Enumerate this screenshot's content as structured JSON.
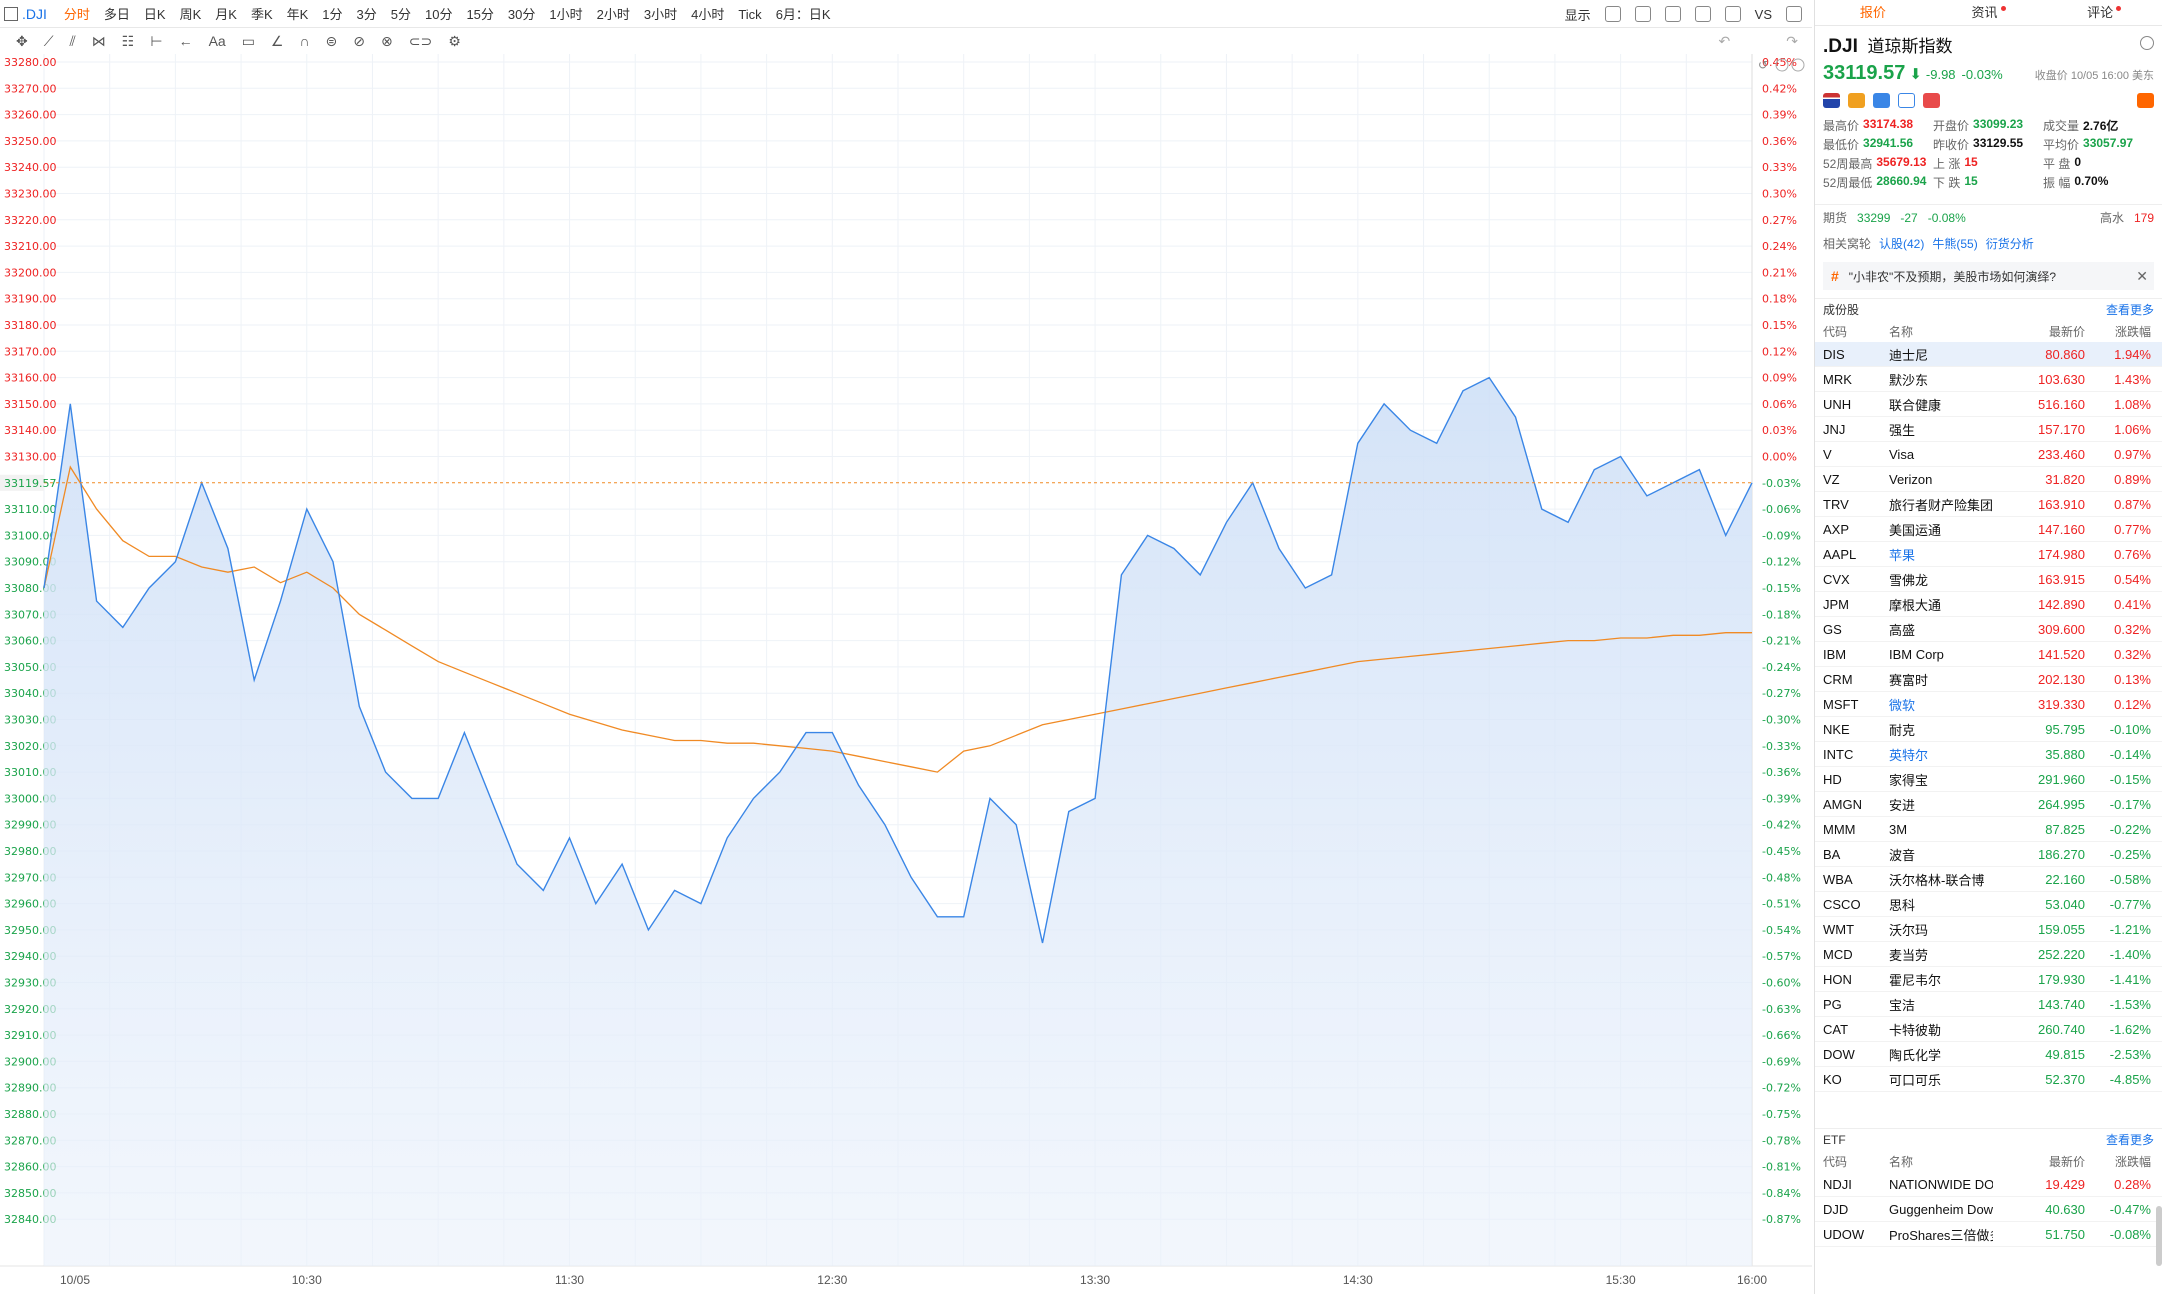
{
  "toolbar": {
    "symbol": ".DJI",
    "periods": [
      "分时",
      "多日",
      "日K",
      "周K",
      "月K",
      "季K",
      "年K",
      "1分",
      "3分",
      "5分",
      "10分",
      "15分",
      "30分",
      "1小时",
      "2小时",
      "3小时",
      "4小时",
      "Tick",
      "6月：日K"
    ],
    "active_period": "分时",
    "display_label": "显示",
    "vs_label": "VS"
  },
  "chart": {
    "last_price_label": "33119.57",
    "last_pct_label": "-0.03%",
    "y_left": [
      "33280.00",
      "33270.00",
      "33260.00",
      "33250.00",
      "33240.00",
      "33230.00",
      "33220.00",
      "33210.00",
      "33200.00",
      "33190.00",
      "33180.00",
      "33170.00",
      "33160.00",
      "33150.00",
      "33140.00",
      "33130.00",
      "33110.00",
      "33100.00",
      "33090.00",
      "33080.00",
      "33070.00",
      "33060.00",
      "33050.00",
      "33040.00",
      "33030.00",
      "33020.00",
      "33010.00",
      "33000.00",
      "32990.00",
      "32980.00",
      "32970.00",
      "32960.00",
      "32950.00",
      "32940.00",
      "32930.00",
      "32920.00",
      "32910.00",
      "32900.00",
      "32890.00",
      "32880.00",
      "32870.00",
      "32860.00",
      "32850.00",
      "32840.00"
    ],
    "y_right": [
      "0.45%",
      "0.42%",
      "0.39%",
      "0.36%",
      "0.33%",
      "0.30%",
      "0.27%",
      "0.24%",
      "0.21%",
      "0.18%",
      "0.15%",
      "0.12%",
      "0.09%",
      "0.06%",
      "0.03%",
      "0.00%",
      "-0.06%",
      "-0.09%",
      "-0.12%",
      "-0.15%",
      "-0.18%",
      "-0.21%",
      "-0.24%",
      "-0.27%",
      "-0.30%",
      "-0.33%",
      "-0.36%",
      "-0.39%",
      "-0.42%",
      "-0.45%",
      "-0.48%",
      "-0.51%",
      "-0.54%",
      "-0.57%",
      "-0.60%",
      "-0.63%",
      "-0.66%",
      "-0.69%",
      "-0.72%",
      "-0.75%",
      "-0.78%",
      "-0.81%",
      "-0.84%",
      "-0.87%"
    ],
    "x_labels": [
      "10/05",
      "10:30",
      "11:30",
      "12:30",
      "13:30",
      "14:30",
      "15:30",
      "16:00"
    ]
  },
  "chart_data": {
    "type": "area",
    "ylim": [
      32840,
      33280
    ],
    "prev_close": 33129.55,
    "x": [
      "09:30",
      "09:36",
      "09:42",
      "09:48",
      "09:54",
      "10:00",
      "10:06",
      "10:12",
      "10:18",
      "10:24",
      "10:30",
      "10:36",
      "10:42",
      "10:48",
      "10:54",
      "11:00",
      "11:06",
      "11:12",
      "11:18",
      "11:24",
      "11:30",
      "11:36",
      "11:42",
      "11:48",
      "11:54",
      "12:00",
      "12:06",
      "12:12",
      "12:18",
      "12:24",
      "12:30",
      "12:36",
      "12:42",
      "12:48",
      "12:54",
      "13:00",
      "13:06",
      "13:12",
      "13:18",
      "13:24",
      "13:30",
      "13:36",
      "13:42",
      "13:48",
      "13:54",
      "14:00",
      "14:06",
      "14:12",
      "14:18",
      "14:24",
      "14:30",
      "14:36",
      "14:42",
      "14:48",
      "14:54",
      "15:00",
      "15:06",
      "15:12",
      "15:18",
      "15:24",
      "15:30",
      "15:36",
      "15:42",
      "15:48",
      "15:54",
      "16:00"
    ],
    "series": [
      {
        "values": [
          33080,
          33150,
          33075,
          33065,
          33080,
          33090,
          33120,
          33095,
          33045,
          33075,
          33110,
          33090,
          33035,
          33010,
          33000,
          33000,
          33025,
          33000,
          32975,
          32965,
          32985,
          32960,
          32975,
          32950,
          32965,
          32960,
          32985,
          33000,
          33010,
          33025,
          33025,
          33005,
          32990,
          32970,
          32955,
          32955,
          33000,
          32990,
          32945,
          32995,
          33000,
          33085,
          33100,
          33095,
          33085,
          33105,
          33120,
          33095,
          33080,
          33085,
          33135,
          33150,
          33140,
          33135,
          33155,
          33160,
          33145,
          33110,
          33105,
          33125,
          33130,
          33115,
          33120,
          33125,
          33100,
          33120
        ]
      },
      {
        "values": [
          33080,
          33126,
          33110,
          33098,
          33092,
          33092,
          33088,
          33086,
          33088,
          33082,
          33086,
          33080,
          33070,
          33064,
          33058,
          33052,
          33048,
          33044,
          33040,
          33036,
          33032,
          33029,
          33026,
          33024,
          33022,
          33022,
          33021,
          33021,
          33020,
          33019,
          33018,
          33016,
          33014,
          33012,
          33010,
          33018,
          33020,
          33024,
          33028,
          33030,
          33032,
          33034,
          33036,
          33038,
          33040,
          33042,
          33044,
          33046,
          33048,
          33050,
          33052,
          33053,
          33054,
          33055,
          33056,
          33057,
          33058,
          33059,
          33060,
          33060,
          33061,
          33061,
          33062,
          33062,
          33063,
          33063
        ]
      }
    ]
  },
  "panel": {
    "tabs": [
      "报价",
      "资讯",
      "评论"
    ],
    "code": ".DJI",
    "name": "道琼斯指数",
    "price": "33119.57",
    "arrow": "⬇",
    "change": "-9.98",
    "change_pct": "-0.03%",
    "close_time": "收盘价 10/05 16:00 美东",
    "stats": [
      [
        {
          "k": "最高价",
          "v": "33174.38",
          "c": "red"
        },
        {
          "k": "开盘价",
          "v": "33099.23",
          "c": "green"
        },
        {
          "k": "成交量",
          "v": "2.76亿",
          "c": "black"
        }
      ],
      [
        {
          "k": "最低价",
          "v": "32941.56",
          "c": "green"
        },
        {
          "k": "昨收价",
          "v": "33129.55",
          "c": "black"
        },
        {
          "k": "平均价",
          "v": "33057.97",
          "c": "green"
        }
      ],
      [
        {
          "k": "52周最高",
          "v": "35679.13",
          "c": "red"
        },
        {
          "k": "上 涨",
          "v": "15",
          "c": "red"
        },
        {
          "k": "平 盘",
          "v": "0",
          "c": "black"
        }
      ],
      [
        {
          "k": "52周最低",
          "v": "28660.94",
          "c": "green"
        },
        {
          "k": "下 跌",
          "v": "15",
          "c": "green"
        },
        {
          "k": "振 幅",
          "v": "0.70%",
          "c": "black"
        }
      ]
    ],
    "futures": {
      "label": "期货",
      "price": "33299",
      "chg": "-27",
      "pct": "-0.08%",
      "right_label": "高水",
      "right_val": "179"
    },
    "related": {
      "label": "相关窝轮",
      "items": [
        "认股(42)",
        "牛熊(55)",
        "衍货分析"
      ]
    },
    "news": "\"小非农\"不及预期，美股市场如何演绎?",
    "components_title": "成份股",
    "more_label": "查看更多",
    "columns": [
      "代码",
      "名称",
      "最新价",
      "涨跌幅"
    ],
    "components": [
      {
        "code": "DIS",
        "name": "迪士尼",
        "price": "80.860",
        "pct": "1.94%",
        "up": true,
        "link": false
      },
      {
        "code": "MRK",
        "name": "默沙东",
        "price": "103.630",
        "pct": "1.43%",
        "up": true,
        "link": false
      },
      {
        "code": "UNH",
        "name": "联合健康",
        "price": "516.160",
        "pct": "1.08%",
        "up": true,
        "link": false
      },
      {
        "code": "JNJ",
        "name": "强生",
        "price": "157.170",
        "pct": "1.06%",
        "up": true,
        "link": false
      },
      {
        "code": "V",
        "name": "Visa",
        "price": "233.460",
        "pct": "0.97%",
        "up": true,
        "link": false
      },
      {
        "code": "VZ",
        "name": "Verizon",
        "price": "31.820",
        "pct": "0.89%",
        "up": true,
        "link": false
      },
      {
        "code": "TRV",
        "name": "旅行者财产险集团",
        "price": "163.910",
        "pct": "0.87%",
        "up": true,
        "link": false
      },
      {
        "code": "AXP",
        "name": "美国运通",
        "price": "147.160",
        "pct": "0.77%",
        "up": true,
        "link": false
      },
      {
        "code": "AAPL",
        "name": "苹果",
        "price": "174.980",
        "pct": "0.76%",
        "up": true,
        "link": true
      },
      {
        "code": "CVX",
        "name": "雪佛龙",
        "price": "163.915",
        "pct": "0.54%",
        "up": true,
        "link": false
      },
      {
        "code": "JPM",
        "name": "摩根大通",
        "price": "142.890",
        "pct": "0.41%",
        "up": true,
        "link": false
      },
      {
        "code": "GS",
        "name": "高盛",
        "price": "309.600",
        "pct": "0.32%",
        "up": true,
        "link": false
      },
      {
        "code": "IBM",
        "name": "IBM Corp",
        "price": "141.520",
        "pct": "0.32%",
        "up": true,
        "link": false
      },
      {
        "code": "CRM",
        "name": "赛富时",
        "price": "202.130",
        "pct": "0.13%",
        "up": true,
        "link": false
      },
      {
        "code": "MSFT",
        "name": "微软",
        "price": "319.330",
        "pct": "0.12%",
        "up": true,
        "link": true
      },
      {
        "code": "NKE",
        "name": "耐克",
        "price": "95.795",
        "pct": "-0.10%",
        "up": false,
        "link": false
      },
      {
        "code": "INTC",
        "name": "英特尔",
        "price": "35.880",
        "pct": "-0.14%",
        "up": false,
        "link": true
      },
      {
        "code": "HD",
        "name": "家得宝",
        "price": "291.960",
        "pct": "-0.15%",
        "up": false,
        "link": false
      },
      {
        "code": "AMGN",
        "name": "安进",
        "price": "264.995",
        "pct": "-0.17%",
        "up": false,
        "link": false
      },
      {
        "code": "MMM",
        "name": "3M",
        "price": "87.825",
        "pct": "-0.22%",
        "up": false,
        "link": false
      },
      {
        "code": "BA",
        "name": "波音",
        "price": "186.270",
        "pct": "-0.25%",
        "up": false,
        "link": false
      },
      {
        "code": "WBA",
        "name": "沃尔格林-联合博",
        "price": "22.160",
        "pct": "-0.58%",
        "up": false,
        "link": false
      },
      {
        "code": "CSCO",
        "name": "思科",
        "price": "53.040",
        "pct": "-0.77%",
        "up": false,
        "link": false
      },
      {
        "code": "WMT",
        "name": "沃尔玛",
        "price": "159.055",
        "pct": "-1.21%",
        "up": false,
        "link": false
      },
      {
        "code": "MCD",
        "name": "麦当劳",
        "price": "252.220",
        "pct": "-1.40%",
        "up": false,
        "link": false
      },
      {
        "code": "HON",
        "name": "霍尼韦尔",
        "price": "179.930",
        "pct": "-1.41%",
        "up": false,
        "link": false
      },
      {
        "code": "PG",
        "name": "宝洁",
        "price": "143.740",
        "pct": "-1.53%",
        "up": false,
        "link": false
      },
      {
        "code": "CAT",
        "name": "卡特彼勒",
        "price": "260.740",
        "pct": "-1.62%",
        "up": false,
        "link": false
      },
      {
        "code": "DOW",
        "name": "陶氏化学",
        "price": "49.815",
        "pct": "-2.53%",
        "up": false,
        "link": false
      },
      {
        "code": "KO",
        "name": "可口可乐",
        "price": "52.370",
        "pct": "-4.85%",
        "up": false,
        "link": false
      }
    ],
    "etf_title": "ETF",
    "etfs": [
      {
        "code": "NDJI",
        "name": "NATIONWIDE DOW",
        "price": "19.429",
        "pct": "0.28%",
        "up": true
      },
      {
        "code": "DJD",
        "name": "Guggenheim Dow",
        "price": "40.630",
        "pct": "-0.47%",
        "up": false
      },
      {
        "code": "UDOW",
        "name": "ProShares三倍做多",
        "price": "51.750",
        "pct": "-0.08%",
        "up": false
      }
    ]
  }
}
